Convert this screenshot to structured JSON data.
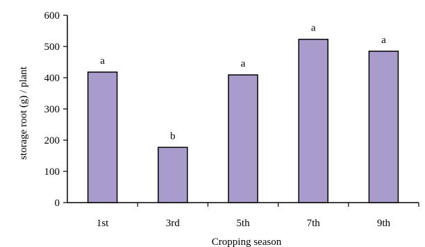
{
  "chart_data": {
    "type": "bar",
    "categories": [
      "1st",
      "3rd",
      "5th",
      "7th",
      "9th"
    ],
    "values": [
      418,
      177,
      409,
      523,
      485
    ],
    "significance_letters": [
      "a",
      "b",
      "a",
      "a",
      "a"
    ],
    "title": "",
    "xlabel": "Cropping season",
    "ylabel": "storage root (g) / plant",
    "ylim": [
      0,
      600
    ],
    "yticks": [
      0,
      100,
      200,
      300,
      400,
      500,
      600
    ],
    "grid": false,
    "legend": "none",
    "bar_color": "#a99ccc",
    "bar_edge_color": "#000000"
  }
}
